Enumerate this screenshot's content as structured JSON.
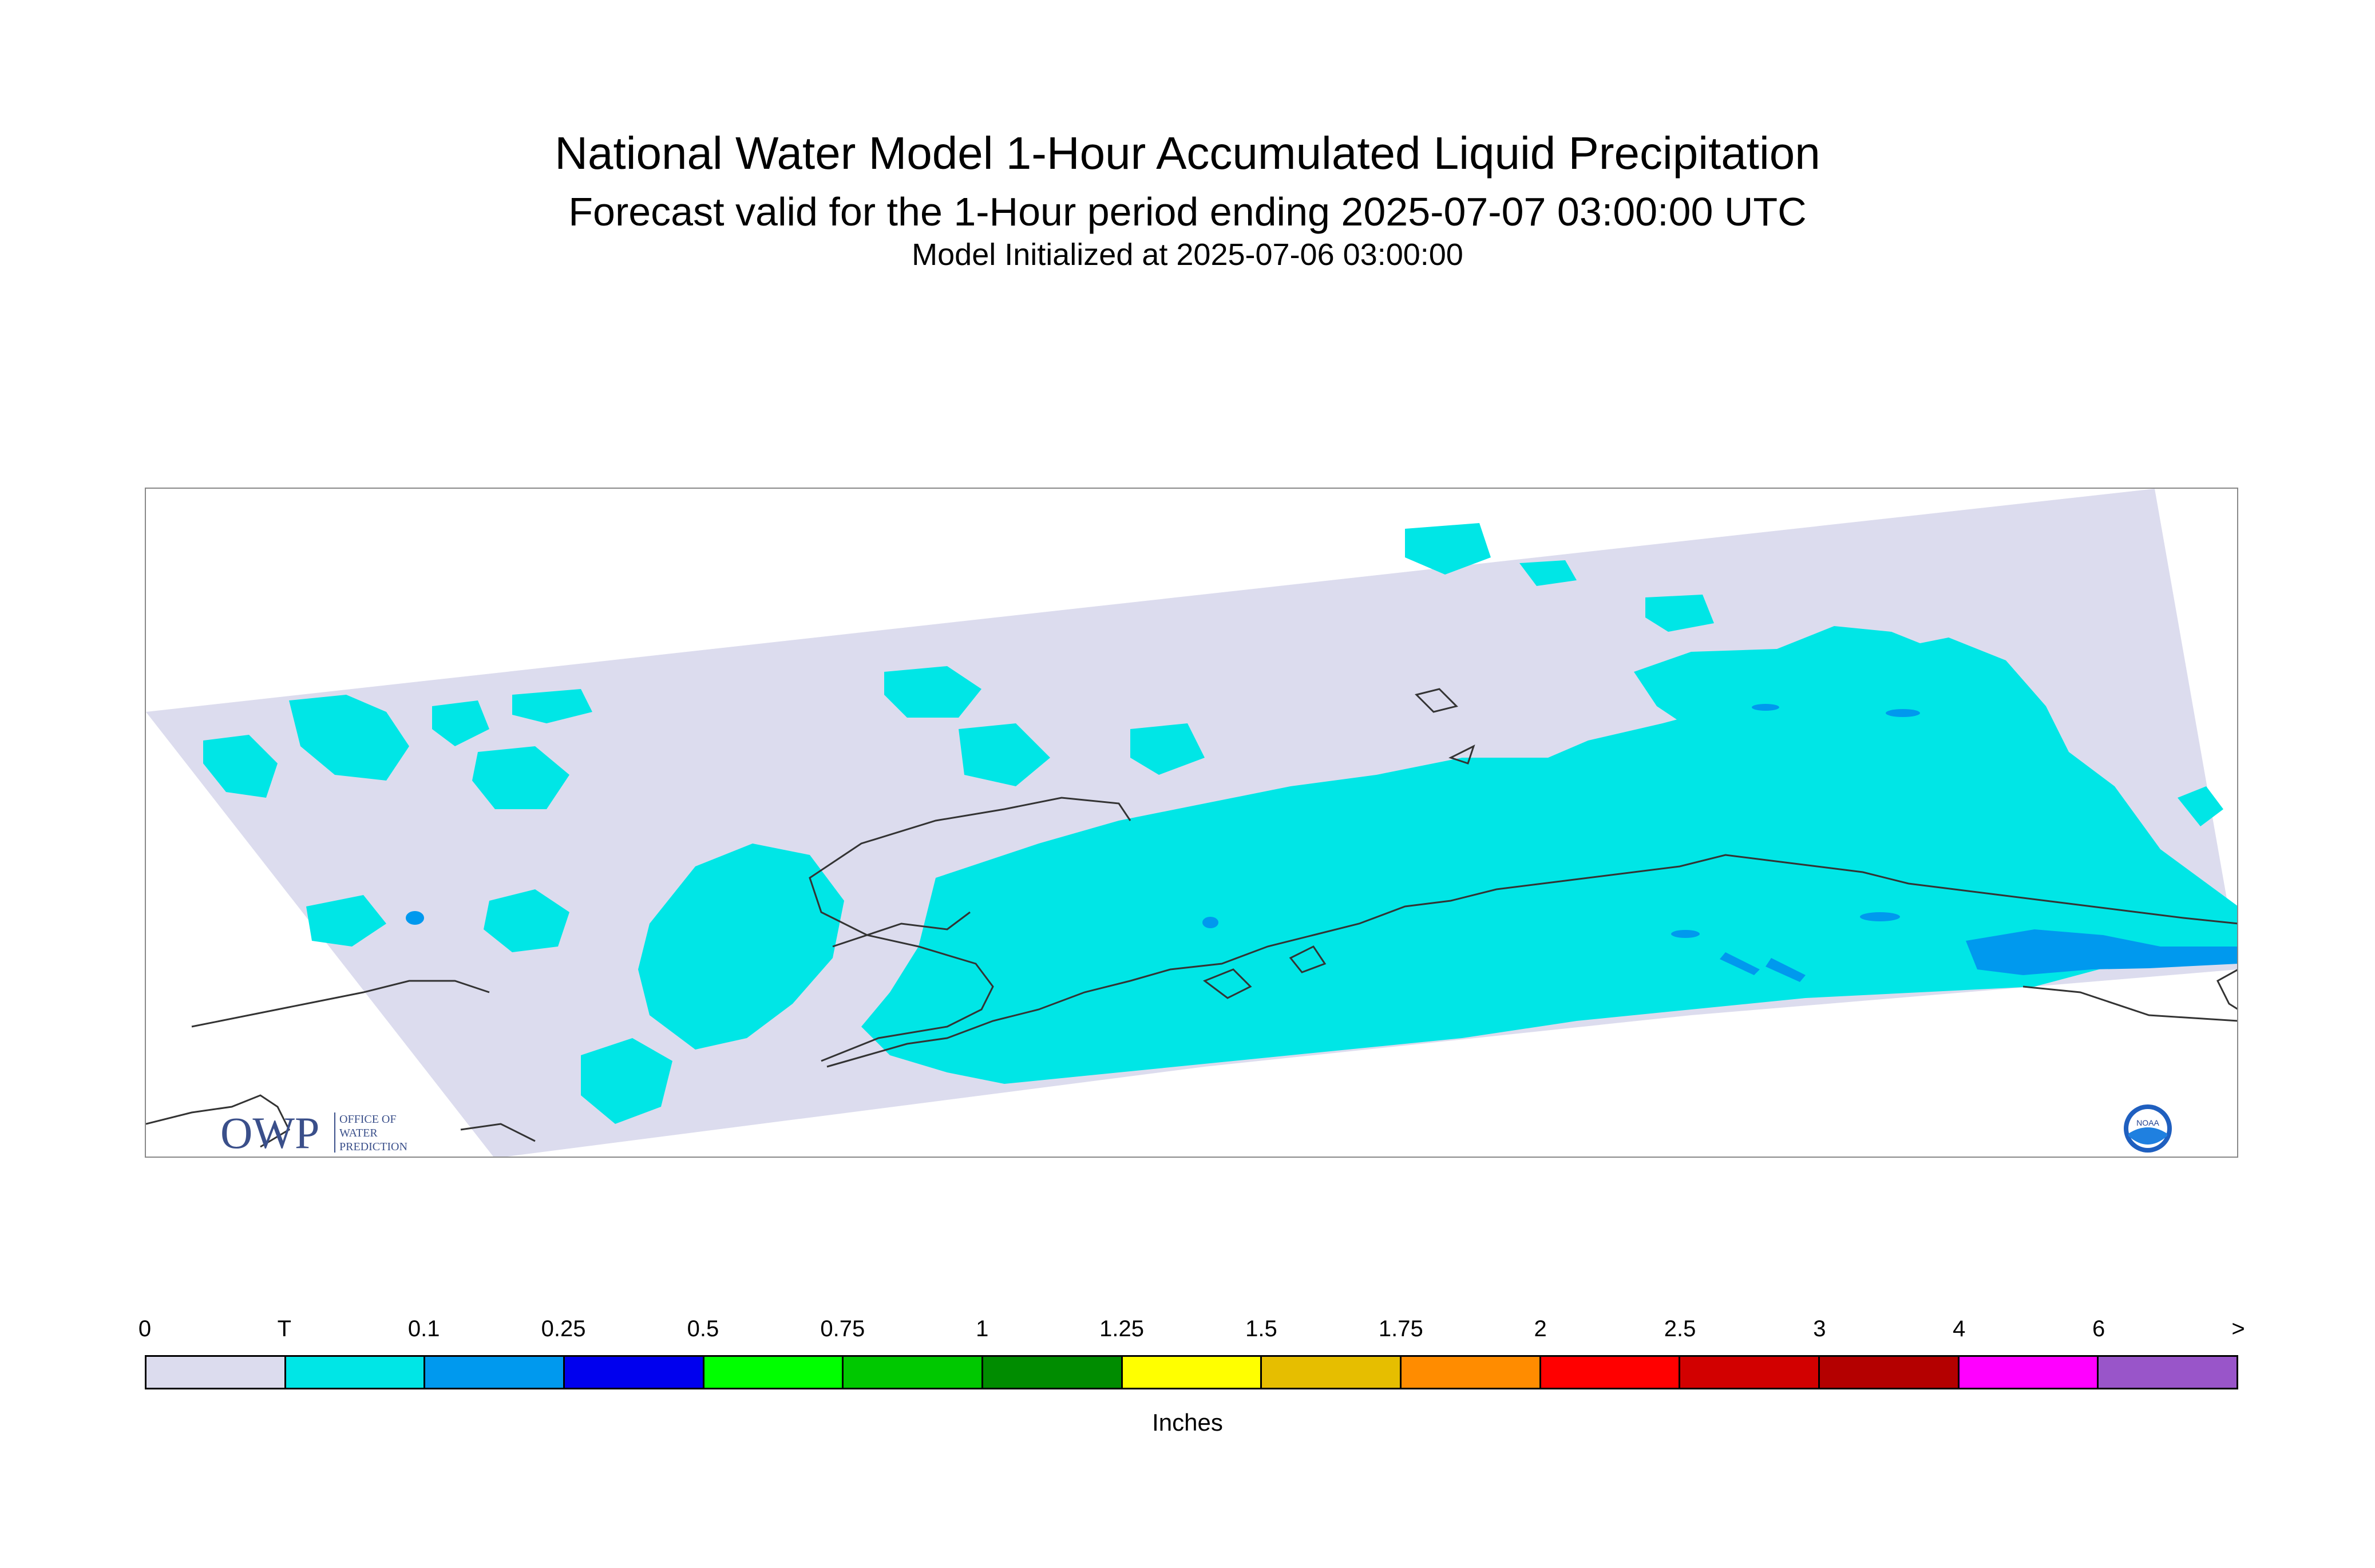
{
  "title": "National Water Model 1-Hour Accumulated Liquid Precipitation",
  "subtitle": "Forecast valid for the 1-Hour period ending 2025-07-07 03:00:00 UTC",
  "initialized": "Model Initialized at 2025-07-06 03:00:00",
  "logos": {
    "owp_main": "OWP",
    "owp_lines": [
      "OFFICE OF",
      "WATER",
      "PREDICTION"
    ],
    "noaa": "NOAA"
  },
  "legend": {
    "units": "Inches",
    "tick_labels": [
      "0",
      "T",
      "0.1",
      "0.25",
      "0.5",
      "0.75",
      "1",
      "1.25",
      "1.5",
      "1.75",
      "2",
      "2.5",
      "3",
      "4",
      "6",
      ">"
    ],
    "colors": [
      "#dcdcee",
      "#00e6e6",
      "#0099ee",
      "#0000ee",
      "#00ff00",
      "#00c800",
      "#008c00",
      "#ffff00",
      "#e6be00",
      "#ff8c00",
      "#ff0000",
      "#d20000",
      "#b40000",
      "#ff00ff",
      "#9955c9"
    ]
  },
  "map_colors": {
    "domain_fill": "#dcdcee",
    "trace": "#00e6e6",
    "light": "#0099ee",
    "coastline": "#333333",
    "frame": "#888888"
  }
}
